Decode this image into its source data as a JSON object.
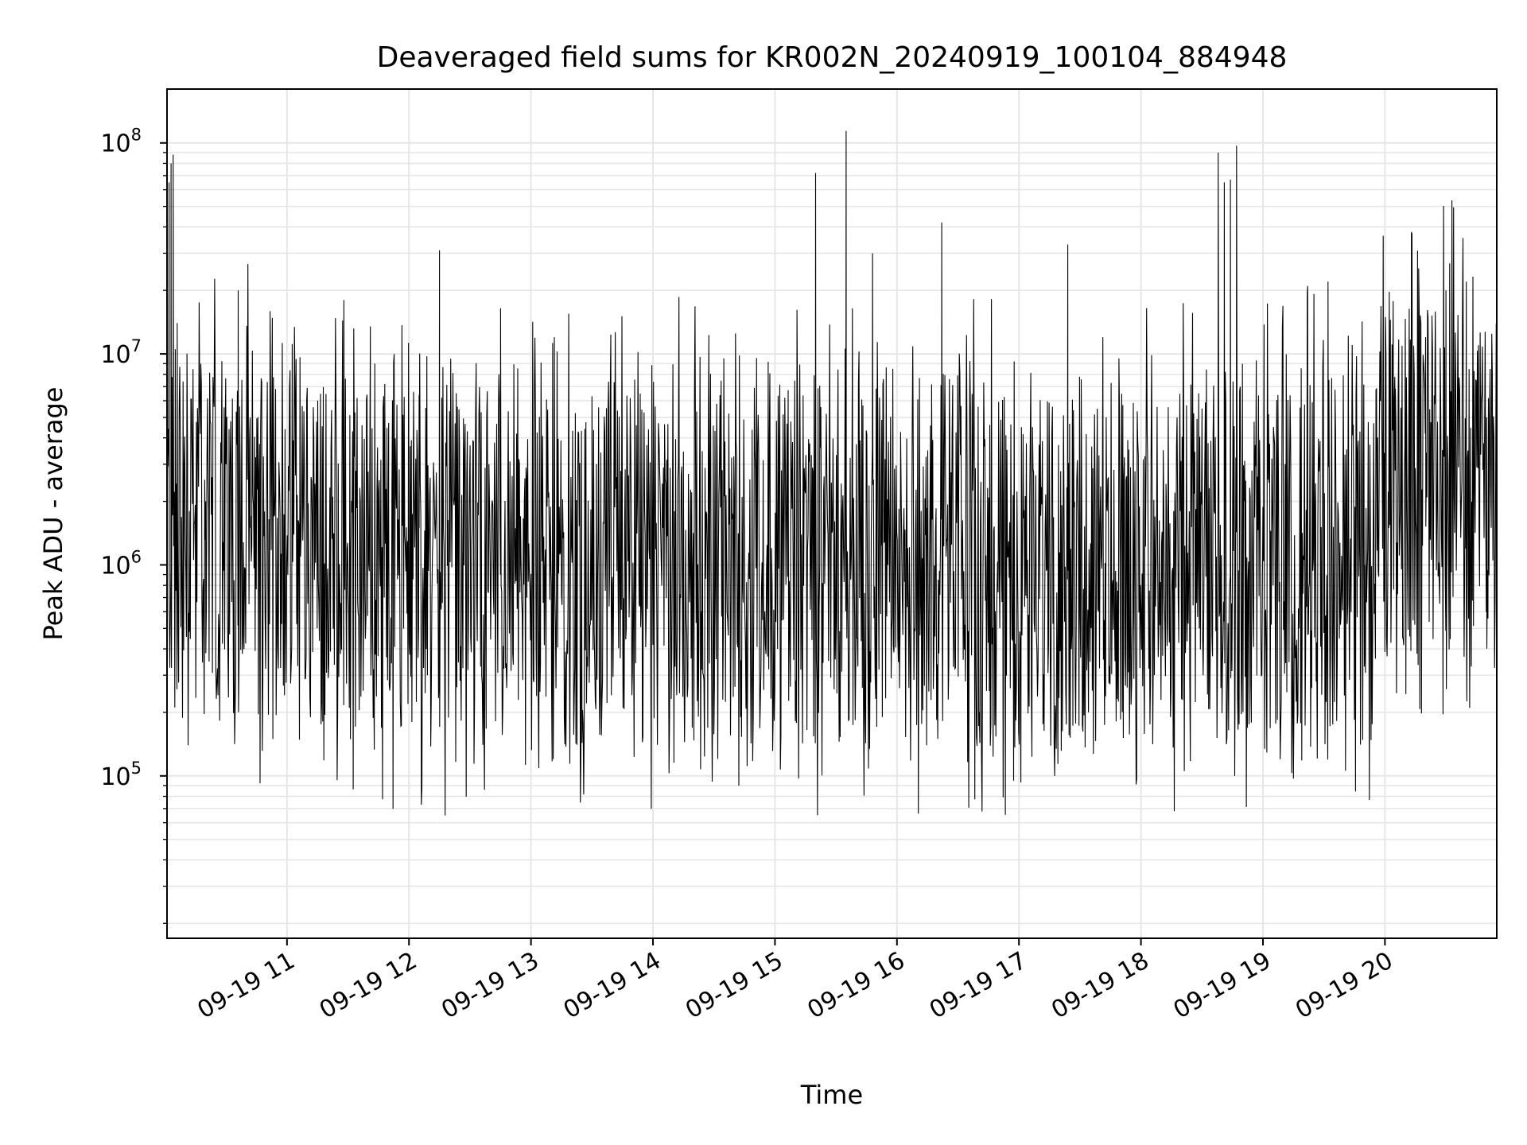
{
  "chart_data": {
    "type": "line",
    "title": "Deaveraged field sums for KR002N_20240919_100104_884948",
    "xlabel": "Time",
    "ylabel": "Peak ADU - average",
    "yscale": "log",
    "ylim": [
      17000,
      180000000
    ],
    "xlim": [
      "2024-09-19 10:01",
      "2024-09-19 20:55"
    ],
    "grid": true,
    "line_color": "#000000",
    "x_ticks": [
      "09-19 11",
      "09-19 12",
      "09-19 13",
      "09-19 14",
      "09-19 15",
      "09-19 16",
      "09-19 17",
      "09-19 18",
      "09-19 19",
      "09-19 20"
    ],
    "y_ticks": [
      {
        "base": "10",
        "exp": "5",
        "value": 100000
      },
      {
        "base": "10",
        "exp": "6",
        "value": 1000000
      },
      {
        "base": "10",
        "exp": "7",
        "value": 10000000
      },
      {
        "base": "10",
        "exp": "8",
        "value": 100000000
      }
    ],
    "series": [
      {
        "x": [
          "2024-09-19 10:01",
          "2024-09-19 10:02",
          "2024-09-19 10:03",
          "2024-09-19 10:04",
          "2024-09-19 10:05",
          "2024-09-19 10:06",
          "2024-09-19 10:08",
          "2024-09-19 10:12",
          "2024-09-19 10:20",
          "2024-09-19 10:30",
          "2024-09-19 10:36",
          "2024-09-19 10:42",
          "2024-09-19 10:50",
          "2024-09-19 10:58",
          "2024-09-19 11:05",
          "2024-09-19 11:15",
          "2024-09-19 11:28",
          "2024-09-19 11:41",
          "2024-09-19 11:50",
          "2024-09-19 12:05",
          "2024-09-19 12:15",
          "2024-09-19 12:38",
          "2024-09-19 12:45",
          "2024-09-19 12:58",
          "2024-09-19 13:10",
          "2024-09-19 13:30",
          "2024-09-19 13:45",
          "2024-09-19 14:10",
          "2024-09-19 14:45",
          "2024-09-19 15:20",
          "2024-09-19 15:22",
          "2024-09-19 15:35",
          "2024-09-19 15:48",
          "2024-09-19 15:52",
          "2024-09-19 16:15",
          "2024-09-19 16:22",
          "2024-09-19 16:45",
          "2024-09-19 17:24",
          "2024-09-19 17:50",
          "2024-09-19 17:53",
          "2024-09-19 18:38",
          "2024-09-19 18:41",
          "2024-09-19 18:44",
          "2024-09-19 18:47",
          "2024-09-19 19:05",
          "2024-09-19 19:22",
          "2024-09-19 19:32",
          "2024-09-19 19:50",
          "2024-09-19 20:05",
          "2024-09-19 20:12",
          "2024-09-19 20:20",
          "2024-09-19 20:30",
          "2024-09-19 20:40",
          "2024-09-19 20:50",
          "2024-09-19 20:55"
        ],
        "values": [
          1500000,
          65000000,
          80000000,
          88000000,
          1000000,
          14000000,
          1200000,
          1800000,
          2000000,
          3000000,
          20000000,
          1500000,
          2500000,
          1200000,
          1800000,
          2000000,
          18000000,
          13500000,
          2000000,
          1500000,
          31000000,
          1200000,
          900000,
          700000,
          800000,
          950000,
          1000000,
          1200000,
          1500000,
          72000000,
          1000000,
          114000000,
          30000000,
          1400000,
          1200000,
          42000000,
          1300000,
          33000000,
          1000000,
          900000,
          90000000,
          65000000,
          67000000,
          97000000,
          800000,
          21000000,
          22000000,
          1000000,
          2800000,
          5000000,
          12000000,
          20000000,
          22000000,
          5000000,
          2500000
        ]
      }
    ]
  }
}
